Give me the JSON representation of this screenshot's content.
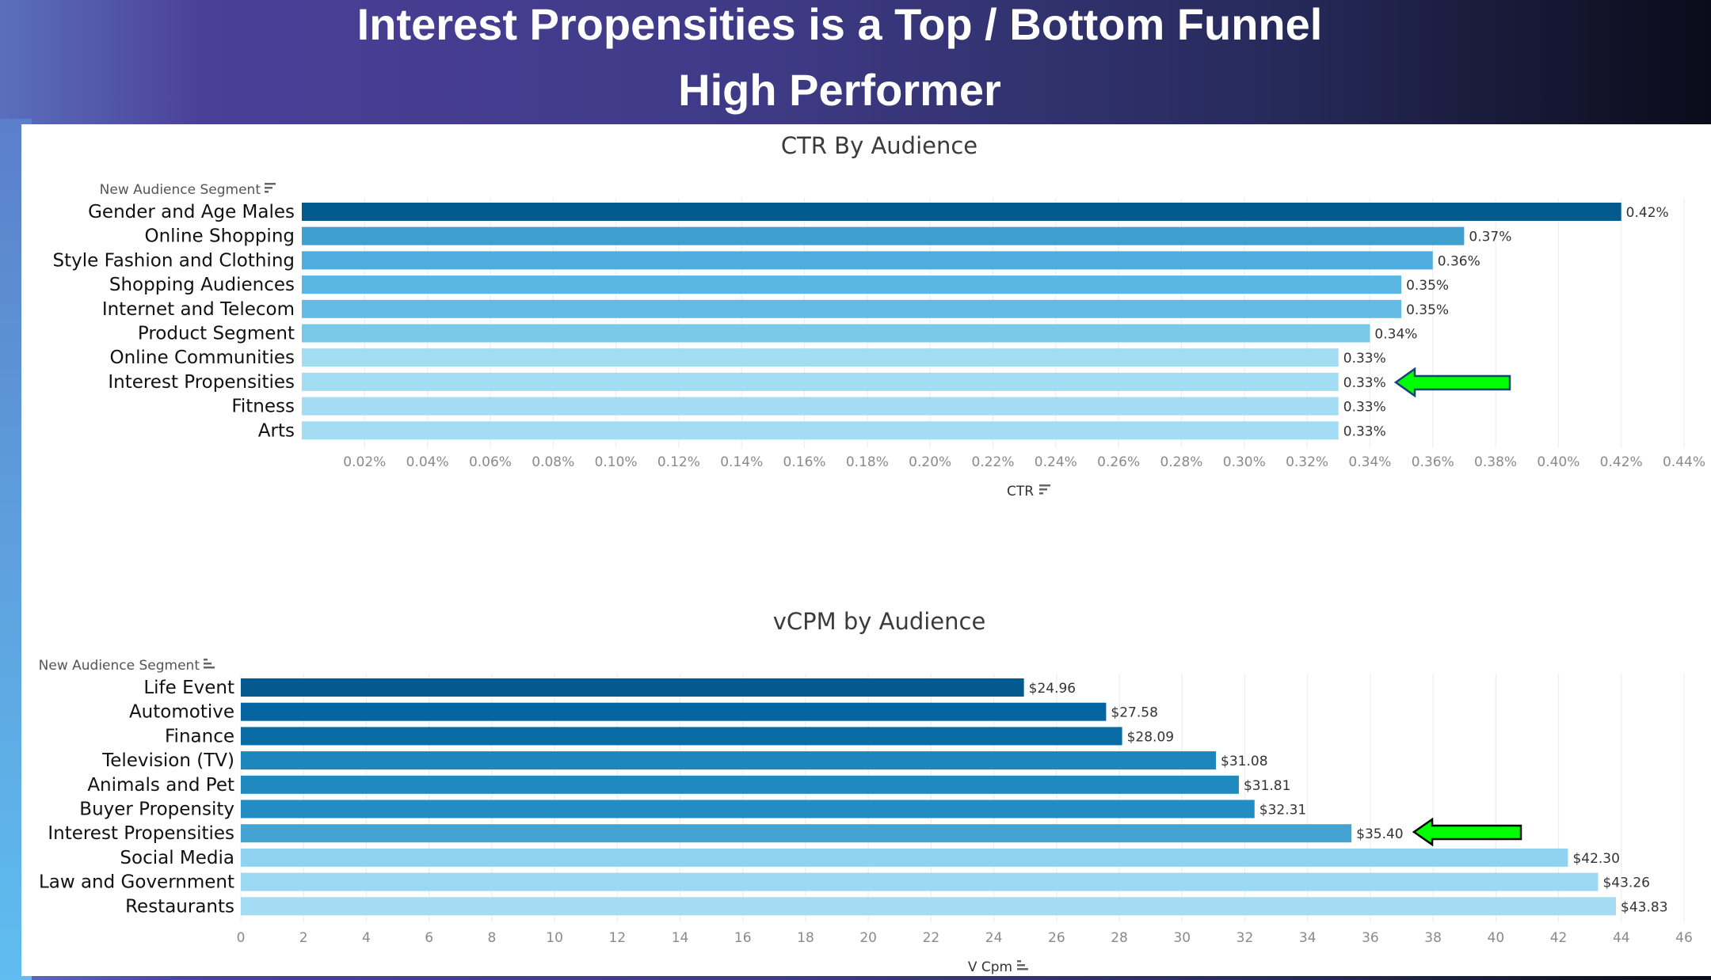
{
  "headline": {
    "line1": "Interest Propensities is a Top / Bottom Funnel",
    "line2": "High Performer"
  },
  "colors": {
    "arrow_fill": "#00ff00",
    "arrow_stroke_top": "#1f3f7a",
    "arrow_stroke_bottom": "#000000"
  },
  "chart_data": [
    {
      "type": "bar",
      "orientation": "horizontal",
      "title": "CTR By Audience",
      "category_header": "New Audience Segment",
      "xlabel": "CTR",
      "categories": [
        "Gender and Age Males",
        "Online Shopping",
        "Style Fashion and Clothing",
        "Shopping Audiences",
        "Internet and Telecom",
        "Product Segment",
        "Online Communities",
        "Interest Propensities",
        "Fitness",
        "Arts"
      ],
      "values": [
        0.42,
        0.37,
        0.36,
        0.35,
        0.35,
        0.34,
        0.33,
        0.33,
        0.33,
        0.33
      ],
      "value_labels": [
        "0.42%",
        "0.37%",
        "0.36%",
        "0.35%",
        "0.35%",
        "0.34%",
        "0.33%",
        "0.33%",
        "0.33%",
        "0.33%"
      ],
      "bar_colors": [
        "#035a8e",
        "#3f9fd1",
        "#4eadde",
        "#5ab6e2",
        "#63bbe5",
        "#79c8ea",
        "#a3dcf3",
        "#a3dcf3",
        "#a3dcf3",
        "#a3dcf3"
      ],
      "xlim": [
        0,
        0.44
      ],
      "ticks": [
        0.02,
        0.04,
        0.06,
        0.08,
        0.1,
        0.12,
        0.14,
        0.16,
        0.18,
        0.2,
        0.22,
        0.24,
        0.26,
        0.28,
        0.3,
        0.32,
        0.34,
        0.36,
        0.38,
        0.4,
        0.42,
        0.44
      ],
      "tick_labels": [
        "0.02%",
        "0.04%",
        "0.06%",
        "0.08%",
        "0.10%",
        "0.12%",
        "0.14%",
        "0.16%",
        "0.18%",
        "0.20%",
        "0.22%",
        "0.24%",
        "0.26%",
        "0.28%",
        "0.30%",
        "0.32%",
        "0.34%",
        "0.36%",
        "0.38%",
        "0.40%",
        "0.42%",
        "0.44%"
      ],
      "grid": true,
      "highlight_category": "Interest Propensities"
    },
    {
      "type": "bar",
      "orientation": "horizontal",
      "title": "vCPM by Audience",
      "category_header": "New Audience Segment",
      "xlabel": "V Cpm",
      "categories": [
        "Life Event",
        "Automotive",
        "Finance",
        "Television (TV)",
        "Animals and Pet",
        "Buyer Propensity",
        "Interest Propensities",
        "Social Media",
        "Law and Government",
        "Restaurants"
      ],
      "values": [
        24.96,
        27.58,
        28.09,
        31.08,
        31.81,
        32.31,
        35.4,
        42.3,
        43.26,
        43.83
      ],
      "value_labels": [
        "$24.96",
        "$27.58",
        "$28.09",
        "$31.08",
        "$31.81",
        "$32.31",
        "$35.40",
        "$42.30",
        "$43.26",
        "$43.83"
      ],
      "bar_colors": [
        "#045a8d",
        "#0565a0",
        "#0a6ca6",
        "#1d87bd",
        "#2089bf",
        "#238cc2",
        "#45a3d4",
        "#8fd3f1",
        "#9bd9f3",
        "#a3dcf3"
      ],
      "xlim": [
        0,
        46
      ],
      "ticks": [
        0,
        2,
        4,
        6,
        8,
        10,
        12,
        14,
        16,
        18,
        20,
        22,
        24,
        26,
        28,
        30,
        32,
        34,
        36,
        38,
        40,
        42,
        44,
        46
      ],
      "tick_labels": [
        "0",
        "2",
        "4",
        "6",
        "8",
        "10",
        "12",
        "14",
        "16",
        "18",
        "20",
        "22",
        "24",
        "26",
        "28",
        "30",
        "32",
        "34",
        "36",
        "38",
        "40",
        "42",
        "44",
        "46"
      ],
      "grid": true,
      "highlight_category": "Interest Propensities"
    }
  ]
}
